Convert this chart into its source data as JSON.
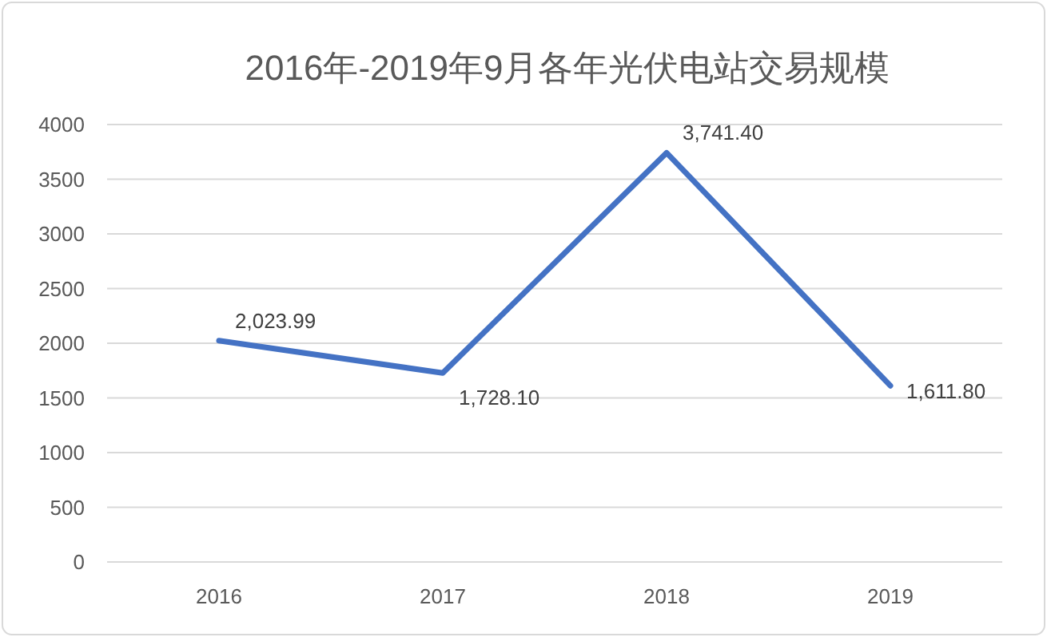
{
  "chart_data": {
    "type": "line",
    "title": "2016年-2019年9月各年光伏电站交易规模",
    "categories": [
      "2016",
      "2017",
      "2018",
      "2019"
    ],
    "series": [
      {
        "color": "#4472c4",
        "values": [
          2023.99,
          1728.1,
          3741.4,
          1611.8
        ],
        "value_labels": [
          "2,023.99",
          "1,728.10",
          "3,741.40",
          "1,611.80"
        ]
      }
    ],
    "ylim": [
      0,
      4000
    ],
    "yticks": [
      0,
      500,
      1000,
      1500,
      2000,
      2500,
      3000,
      3500,
      4000
    ],
    "grid": "y"
  }
}
